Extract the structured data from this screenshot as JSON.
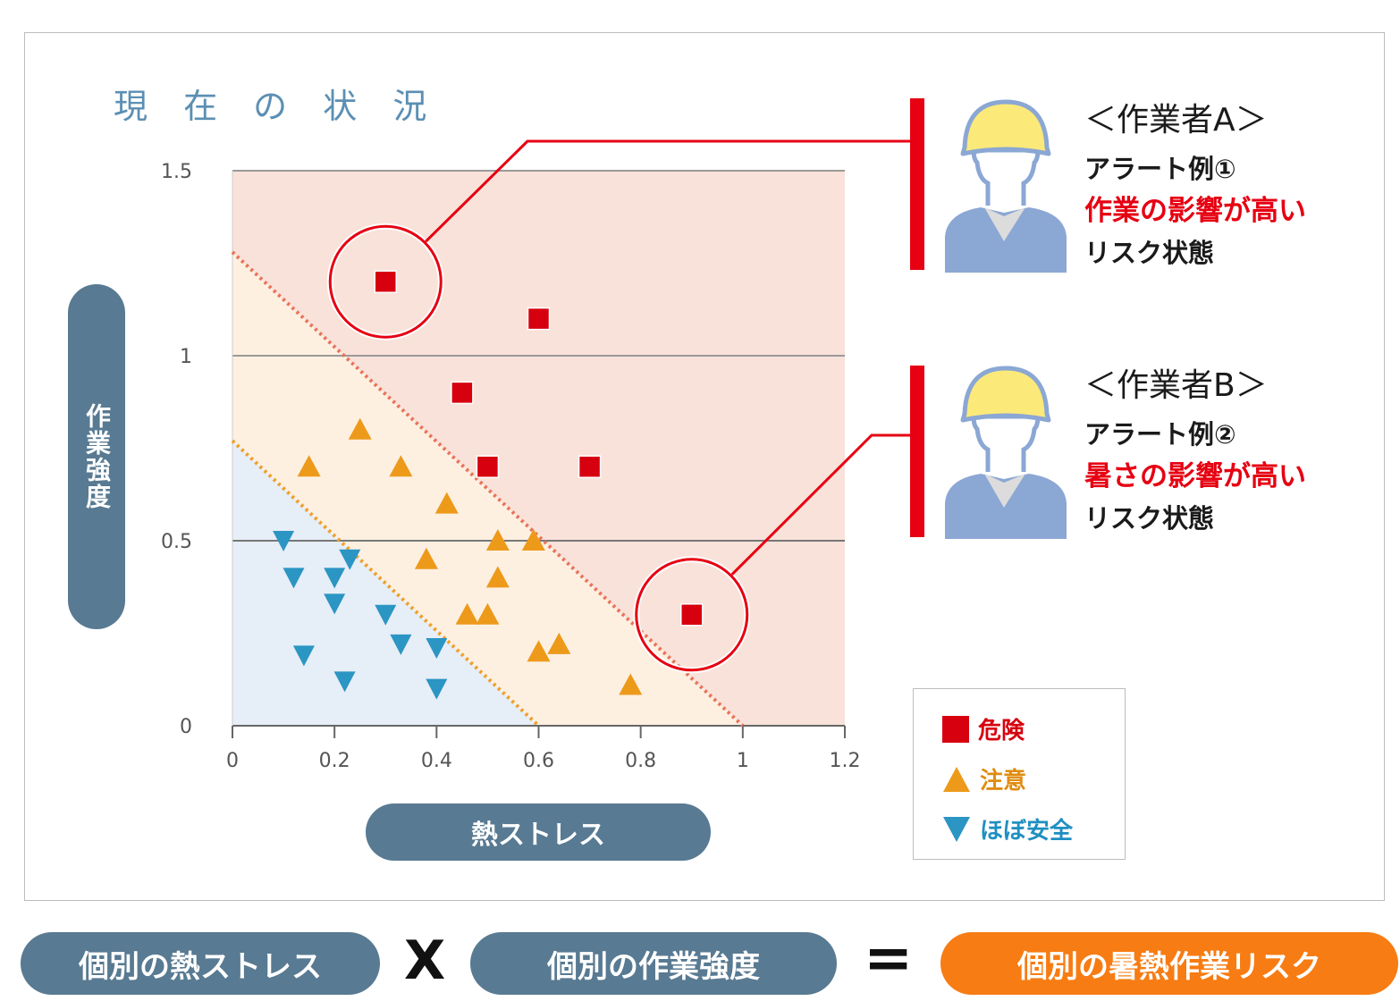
{
  "title": "現 在 の 状 況",
  "chart_data": {
    "type": "scatter",
    "title": "現 在 の 状 況",
    "xlabel": "熱ストレス",
    "ylabel": "作業強度",
    "xlim": [
      0,
      1.2
    ],
    "ylim": [
      0,
      1.5
    ],
    "x_ticks": [
      "0",
      "0.2",
      "0.4",
      "0.6",
      "0.8",
      "1",
      "1.2"
    ],
    "y_ticks": [
      "0",
      "0.5",
      "1",
      "1.5"
    ],
    "x_tick_values": [
      0,
      0.2,
      0.4,
      0.6,
      0.8,
      1,
      1.2
    ],
    "y_tick_values": [
      0,
      0.5,
      1,
      1.5
    ],
    "grid_y": [
      0.5,
      1.0,
      1.5
    ],
    "zones": {
      "danger_color": "#f9e2d9",
      "caution_color": "#fdf0e1",
      "safe_color": "#e6eef7",
      "danger_boundary": [
        [
          0,
          1.28
        ],
        [
          1.0,
          0
        ]
      ],
      "caution_boundary": [
        [
          0,
          0.77
        ],
        [
          0.6,
          0
        ]
      ]
    },
    "series": [
      {
        "name": "危険",
        "marker": "square",
        "color": "#d7000f",
        "points": [
          [
            0.3,
            1.2
          ],
          [
            0.6,
            1.1
          ],
          [
            0.45,
            0.9
          ],
          [
            0.5,
            0.7
          ],
          [
            0.7,
            0.7
          ],
          [
            0.9,
            0.3
          ]
        ]
      },
      {
        "name": "注意",
        "marker": "triangle-up",
        "color": "#ed9a1b",
        "points": [
          [
            0.25,
            0.8
          ],
          [
            0.15,
            0.7
          ],
          [
            0.33,
            0.7
          ],
          [
            0.42,
            0.6
          ],
          [
            0.52,
            0.5
          ],
          [
            0.59,
            0.5
          ],
          [
            0.38,
            0.45
          ],
          [
            0.52,
            0.4
          ],
          [
            0.46,
            0.3
          ],
          [
            0.5,
            0.3
          ],
          [
            0.6,
            0.2
          ],
          [
            0.64,
            0.22
          ],
          [
            0.78,
            0.11
          ]
        ]
      },
      {
        "name": "ほぼ安全",
        "marker": "triangle-down",
        "color": "#2b95c3",
        "points": [
          [
            0.1,
            0.5
          ],
          [
            0.12,
            0.4
          ],
          [
            0.2,
            0.4
          ],
          [
            0.23,
            0.45
          ],
          [
            0.2,
            0.33
          ],
          [
            0.3,
            0.3
          ],
          [
            0.33,
            0.22
          ],
          [
            0.4,
            0.21
          ],
          [
            0.14,
            0.19
          ],
          [
            0.22,
            0.12
          ],
          [
            0.4,
            0.1
          ]
        ]
      }
    ],
    "highlighted_points": [
      [
        0.3,
        1.2
      ],
      [
        0.9,
        0.3
      ]
    ],
    "legend_position": "bottom-right"
  },
  "legend": {
    "danger": "危険",
    "caution": "注意",
    "safe": "ほぼ安全"
  },
  "worker_a": {
    "title": "＜作業者A＞",
    "alert": "アラート例①",
    "risk": "作業の影響が高い",
    "state": "リスク状態"
  },
  "worker_b": {
    "title": "＜作業者B＞",
    "alert": "アラート例②",
    "risk": "暑さの影響が高い",
    "state": "リスク状態"
  },
  "formula": {
    "term1": "個別の熱ストレス",
    "times": "X",
    "term2": "個別の作業強度",
    "equals": "=",
    "result": "個別の暑熱作業リスク"
  },
  "colors": {
    "pill_blue": "#587a92",
    "result_orange": "#f77c13",
    "alert_red": "#e60012",
    "worker_helmet": "#fbe97a",
    "worker_body": "#8ba7d4"
  },
  "icons": [
    "worker-icon",
    "worker-icon"
  ]
}
